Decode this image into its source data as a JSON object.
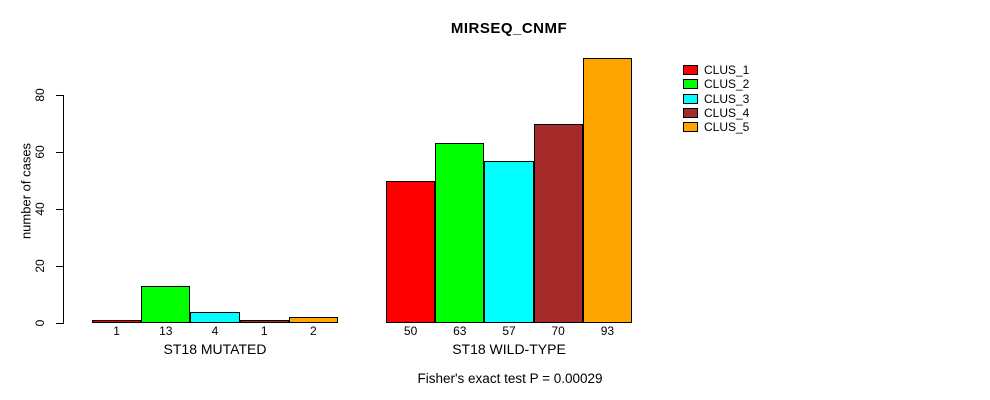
{
  "chart_data": {
    "type": "bar",
    "title": "MIRSEQ_CNMF",
    "ylabel": "number of cases",
    "xlabel": "",
    "groups": [
      {
        "label": "ST18 MUTATED",
        "values": [
          1,
          13,
          4,
          1,
          2
        ]
      },
      {
        "label": "ST18 WILD-TYPE",
        "values": [
          50,
          63,
          57,
          70,
          93
        ]
      }
    ],
    "series": [
      {
        "name": "CLUS_1",
        "color": "#ff0000"
      },
      {
        "name": "CLUS_2",
        "color": "#00ff00"
      },
      {
        "name": "CLUS_3",
        "color": "#00ffff"
      },
      {
        "name": "CLUS_4",
        "color": "#a52a2a"
      },
      {
        "name": "CLUS_5",
        "color": "#ffa500"
      }
    ],
    "y_ticks": [
      0,
      20,
      40,
      60,
      80
    ],
    "ylim": [
      0,
      93
    ],
    "grid": false,
    "legend_position": "top-right",
    "bar_value_labels_shown": true,
    "annotation": "Fisher's exact test P = 0.00029"
  }
}
